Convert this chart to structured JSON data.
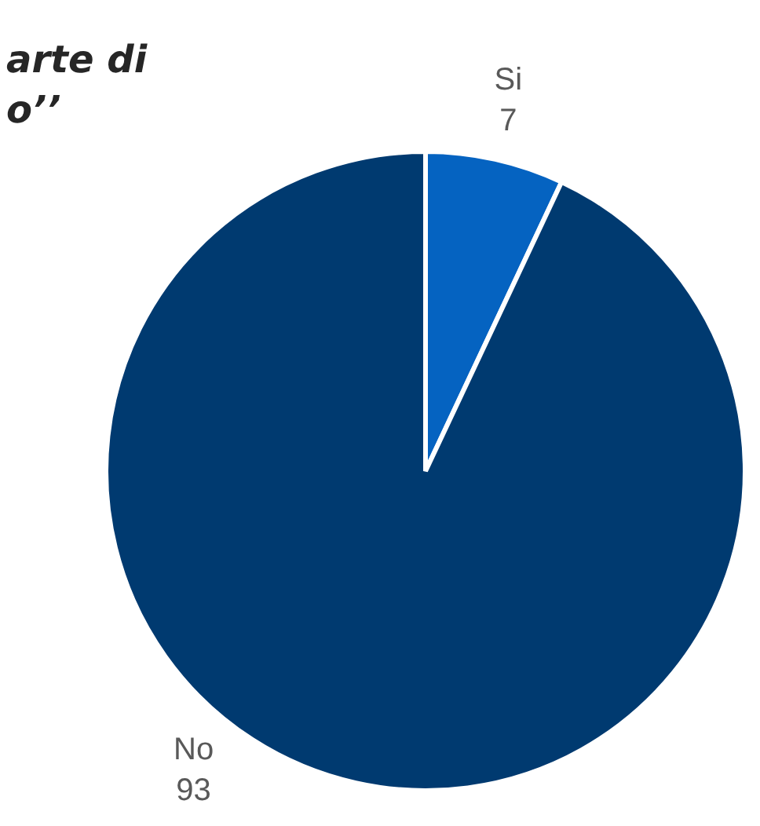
{
  "chart_data": {
    "type": "pie",
    "title": "arte di\no’’",
    "categories": [
      "Si",
      "No"
    ],
    "values": [
      7,
      93
    ],
    "colors": [
      "#0563c1",
      "#003a70"
    ],
    "data_labels": true,
    "legend": false
  }
}
